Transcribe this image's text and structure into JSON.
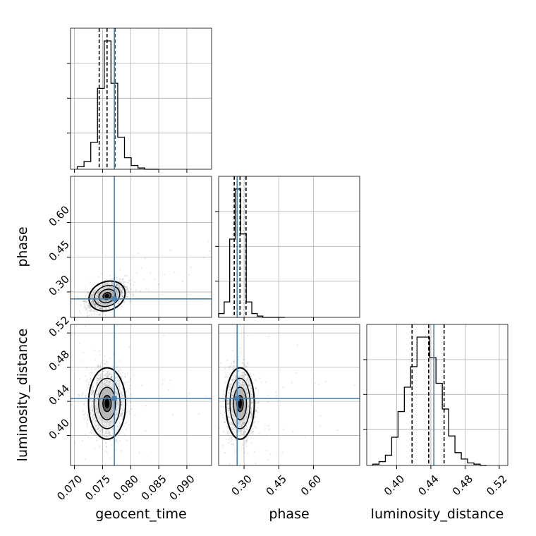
{
  "chart_data": {
    "type": "corner",
    "parameters": [
      "geocent_time",
      "phase",
      "luminosity_distance"
    ],
    "axis_labels": {
      "x": [
        "geocent_time",
        "phase",
        "luminosity_distance"
      ],
      "y": [
        "phase",
        "luminosity_distance"
      ]
    },
    "ranges": {
      "geocent_time": [
        0.0693,
        0.0944
      ],
      "phase": [
        0.19,
        0.8
      ],
      "luminosity_distance": [
        0.365,
        0.53
      ]
    },
    "ticks": {
      "geocent_time": [
        0.07,
        0.075,
        0.08,
        0.085,
        0.09
      ],
      "phase": [
        0.3,
        0.45,
        0.6
      ],
      "luminosity_distance": [
        0.4,
        0.44,
        0.48,
        0.52
      ]
    },
    "tick_labels": {
      "geocent_time": [
        "0.070",
        "0.075",
        "0.080",
        "0.085",
        "0.090"
      ],
      "phase": [
        "0.30",
        "0.45",
        "0.60"
      ],
      "luminosity_distance": [
        "0.40",
        "0.44",
        "0.48",
        "0.52"
      ]
    },
    "truths": {
      "geocent_time": 0.0771,
      "phase": 0.27,
      "luminosity_distance": 0.4435
    },
    "quantiles": {
      "geocent_time": [
        0.0744,
        0.0758,
        0.0772
      ],
      "phase": [
        0.2575,
        0.2825,
        0.3085
      ],
      "luminosity_distance": [
        0.418,
        0.4375,
        0.4555
      ]
    },
    "histograms": {
      "geocent_time": {
        "bins": [
          0.0705,
          0.0717,
          0.0729,
          0.0741,
          0.0753,
          0.0765,
          0.0777,
          0.0789,
          0.0801,
          0.0813,
          0.0825,
          0.0837,
          0.0849
        ],
        "counts": [
          0.02,
          0.06,
          0.21,
          0.63,
          1.0,
          0.67,
          0.25,
          0.09,
          0.03,
          0.01,
          0.0,
          0.0
        ]
      },
      "phase": {
        "bins": [
          0.19,
          0.2139,
          0.2378,
          0.2617,
          0.2856,
          0.3095,
          0.3334,
          0.3573,
          0.3812,
          0.4051,
          0.429,
          0.4529,
          0.4768
        ],
        "counts": [
          0.03,
          0.12,
          0.61,
          1.0,
          0.65,
          0.12,
          0.03,
          0.01,
          0.0,
          0.0,
          0.0,
          0.0
        ]
      },
      "luminosity_distance": {
        "bins": [
          0.372,
          0.3794,
          0.3868,
          0.3942,
          0.4016,
          0.409,
          0.4164,
          0.4238,
          0.4312,
          0.4386,
          0.446,
          0.4534,
          0.4608,
          0.4682,
          0.4756,
          0.483,
          0.4904,
          0.4978,
          0.5052
        ],
        "counts": [
          0.01,
          0.03,
          0.08,
          0.22,
          0.42,
          0.61,
          0.77,
          1.0,
          1.0,
          0.84,
          0.64,
          0.44,
          0.23,
          0.1,
          0.05,
          0.02,
          0.01,
          0.0
        ]
      }
    },
    "centers": {
      "geocent_time": 0.0758,
      "phase": 0.2825,
      "luminosity_distance": 0.4375
    },
    "spreads": {
      "geocent_time": 0.0015,
      "phase": 0.028,
      "luminosity_distance": 0.019
    },
    "grid": true
  },
  "colors": {
    "truth": "#4682b4",
    "samples": "#000000",
    "grid": "#b0b0b0"
  }
}
